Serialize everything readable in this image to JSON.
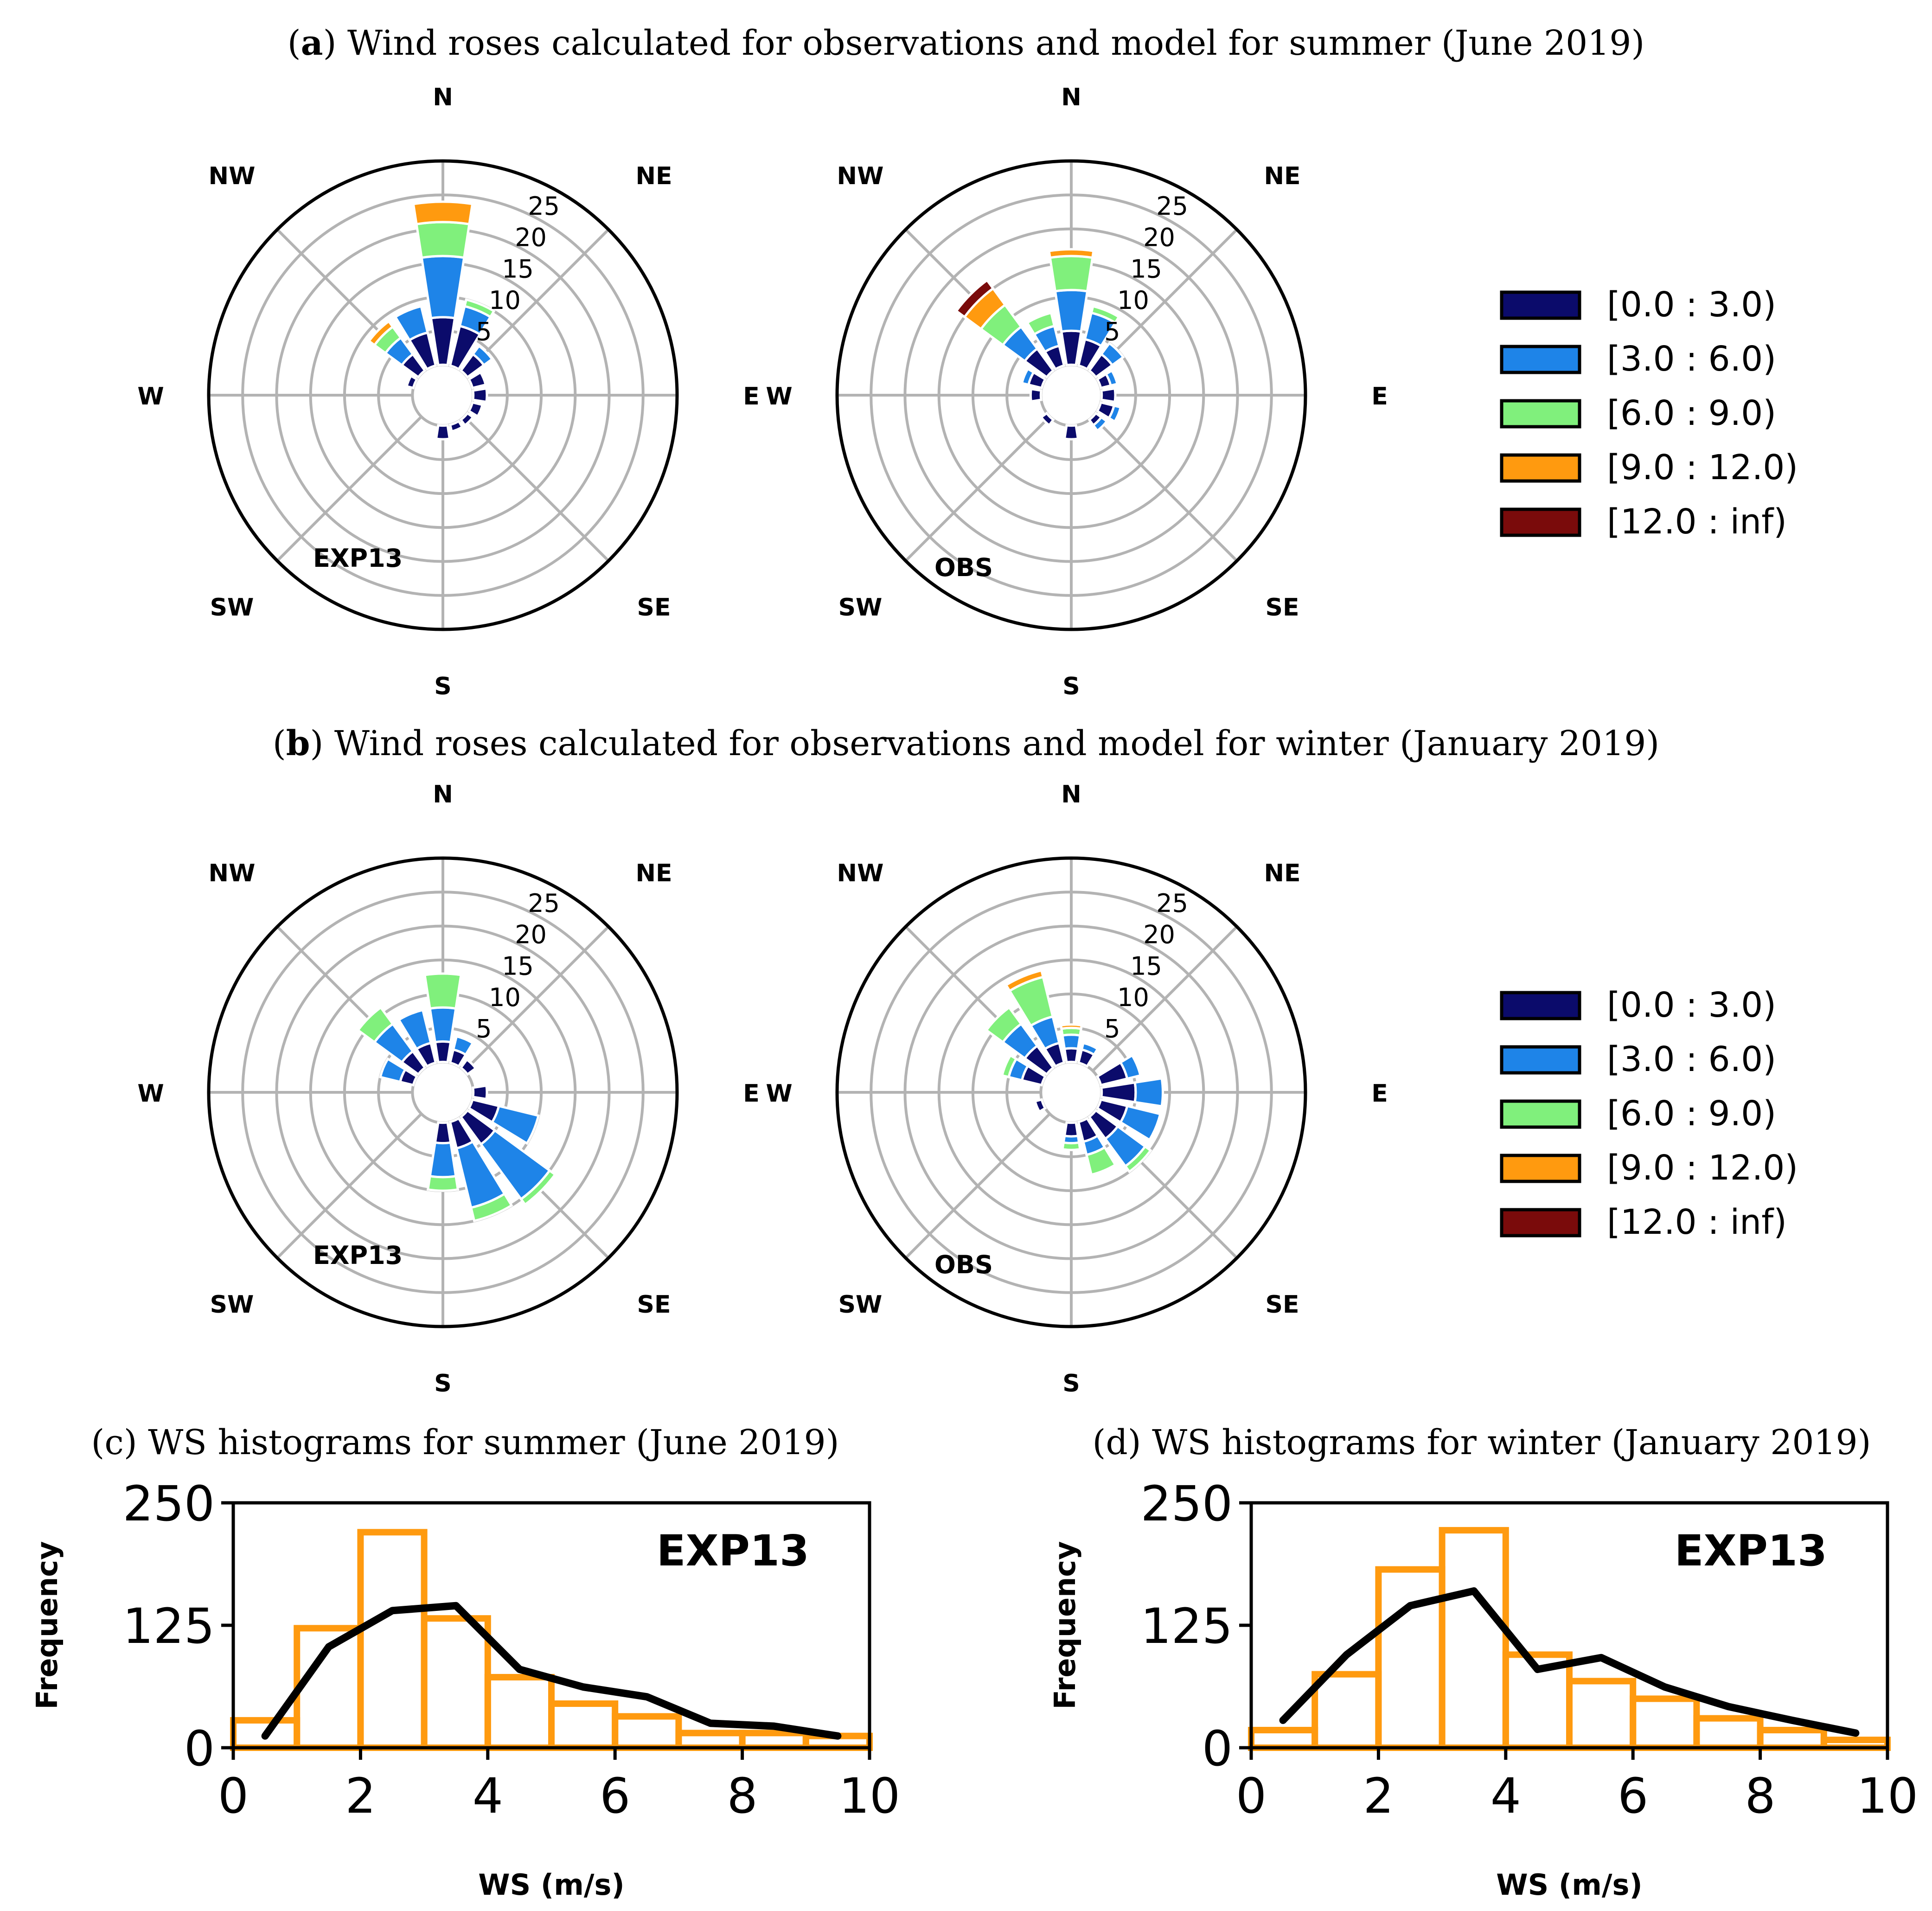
{
  "titles": {
    "a_letter": "a",
    "a_text": ") Wind roses calculated for observations and model for summer (June 2019)",
    "b_letter": "b",
    "b_text": ") Wind roses calculated for observations and model for winter (January 2019)",
    "c": "(c) WS histograms for summer (June 2019)",
    "d": "(d) WS histograms for winter (January 2019)"
  },
  "colors": {
    "bin0": "#0b0b6b",
    "bin1": "#1e84e8",
    "bin2": "#80f07c",
    "bin3": "#ff9a0f",
    "bin4": "#7a0b0b",
    "grid": "#b3b3b3",
    "hist": "#ff9a0f",
    "line": "#000000"
  },
  "directions": [
    "N",
    "NE",
    "E",
    "SE",
    "S",
    "SW",
    "W",
    "NW"
  ],
  "legend": {
    "items": [
      "[0.0 : 3.0)",
      "[3.0 : 6.0)",
      "[6.0 : 9.0)",
      "[9.0 : 12.0)",
      "[12.0 : inf)"
    ]
  },
  "chart_data": [
    {
      "type": "wind_rose",
      "title": "Wind roses calculated for observations and model for summer (June 2019)",
      "label": "EXP13",
      "radial_ticks": [
        "5",
        "10",
        "15",
        "20",
        "25"
      ],
      "rmax": 25,
      "bins": [
        "[0.0 : 3.0)",
        "[3.0 : 6.0)",
        "[6.0 : 9.0)",
        "[9.0 : 12.0)",
        "[12.0 : inf)"
      ],
      "sectors": [
        {
          "dir": 0,
          "values": [
            7,
            9,
            5,
            3,
            0
          ]
        },
        {
          "dir": 22.5,
          "values": [
            6,
            3,
            1,
            0,
            0
          ]
        },
        {
          "dir": 45,
          "values": [
            3,
            1.5,
            0,
            0,
            0
          ]
        },
        {
          "dir": 67.5,
          "values": [
            2,
            0,
            0,
            0,
            0
          ]
        },
        {
          "dir": 90,
          "values": [
            2,
            0,
            0,
            0,
            0
          ]
        },
        {
          "dir": 112.5,
          "values": [
            1.5,
            0,
            0,
            0,
            0
          ]
        },
        {
          "dir": 135,
          "values": [
            1,
            0,
            0,
            0,
            0
          ]
        },
        {
          "dir": 157.5,
          "values": [
            1,
            0,
            0,
            0,
            0
          ]
        },
        {
          "dir": 180,
          "values": [
            2,
            0,
            0,
            0,
            0
          ]
        },
        {
          "dir": 292.5,
          "values": [
            1,
            0,
            0,
            0,
            0
          ]
        },
        {
          "dir": 315,
          "values": [
            3,
            3,
            2,
            1,
            0
          ]
        },
        {
          "dir": 337.5,
          "values": [
            5,
            4,
            0,
            0,
            0
          ]
        }
      ]
    },
    {
      "type": "wind_rose",
      "title": "Wind roses calculated for observations and model for summer (June 2019)",
      "label": "OBS",
      "radial_ticks": [
        "5",
        "10",
        "15",
        "20",
        "25"
      ],
      "rmax": 25,
      "bins": [
        "[0.0 : 3.0)",
        "[3.0 : 6.0)",
        "[6.0 : 9.0)",
        "[9.0 : 12.0)",
        "[12.0 : inf)"
      ],
      "sectors": [
        {
          "dir": 0,
          "values": [
            5,
            6,
            5,
            1,
            0
          ]
        },
        {
          "dir": 22.5,
          "values": [
            4,
            4,
            1,
            0,
            0
          ]
        },
        {
          "dir": 45,
          "values": [
            3,
            2,
            0,
            0,
            0
          ]
        },
        {
          "dir": 67.5,
          "values": [
            1.5,
            1,
            0,
            0,
            0
          ]
        },
        {
          "dir": 90,
          "values": [
            2,
            0,
            0,
            0,
            0
          ]
        },
        {
          "dir": 112.5,
          "values": [
            2,
            1,
            0,
            0,
            0
          ]
        },
        {
          "dir": 135,
          "values": [
            1,
            1,
            0,
            0,
            0
          ]
        },
        {
          "dir": 180,
          "values": [
            2,
            0,
            0,
            0,
            0
          ]
        },
        {
          "dir": 225,
          "values": [
            1,
            0,
            0,
            0,
            0
          ]
        },
        {
          "dir": 270,
          "values": [
            1.5,
            0,
            0,
            0,
            0
          ]
        },
        {
          "dir": 292.5,
          "values": [
            2,
            1,
            0,
            0,
            0
          ]
        },
        {
          "dir": 315,
          "values": [
            4,
            4,
            4,
            3,
            1.5
          ]
        },
        {
          "dir": 337.5,
          "values": [
            3,
            3,
            2,
            0,
            0
          ]
        }
      ]
    },
    {
      "type": "wind_rose",
      "title": "Wind roses calculated for observations and model for winter (January 2019)",
      "label": "EXP13",
      "radial_ticks": [
        "5",
        "10",
        "15",
        "20",
        "25"
      ],
      "rmax": 25,
      "bins": [
        "[0.0 : 3.0)",
        "[3.0 : 6.0)",
        "[6.0 : 9.0)",
        "[9.0 : 12.0)",
        "[12.0 : inf)"
      ],
      "sectors": [
        {
          "dir": 0,
          "values": [
            3,
            5,
            5,
            0,
            0
          ]
        },
        {
          "dir": 22.5,
          "values": [
            2,
            2,
            0,
            0,
            0
          ]
        },
        {
          "dir": 45,
          "values": [
            1.5,
            0,
            0,
            0,
            0
          ]
        },
        {
          "dir": 90,
          "values": [
            2,
            0,
            0,
            0,
            0
          ]
        },
        {
          "dir": 112.5,
          "values": [
            4,
            6,
            0,
            0,
            0
          ]
        },
        {
          "dir": 135,
          "values": [
            5,
            10,
            1,
            0,
            0
          ]
        },
        {
          "dir": 157.5,
          "values": [
            4,
            9,
            2,
            0,
            0
          ]
        },
        {
          "dir": 180,
          "values": [
            3,
            5,
            2,
            0,
            0
          ]
        },
        {
          "dir": 292.5,
          "values": [
            2,
            3,
            0,
            0,
            0
          ]
        },
        {
          "dir": 315,
          "values": [
            3,
            5,
            3,
            0,
            0
          ]
        },
        {
          "dir": 337.5,
          "values": [
            3,
            5,
            0,
            0,
            0
          ]
        }
      ]
    },
    {
      "type": "wind_rose",
      "title": "Wind roses calculated for observations and model for winter (January 2019)",
      "label": "OBS",
      "radial_ticks": [
        "5",
        "10",
        "15",
        "20",
        "25"
      ],
      "rmax": 25,
      "bins": [
        "[0.0 : 3.0)",
        "[3.0 : 6.0)",
        "[6.0 : 9.0)",
        "[9.0 : 12.0)",
        "[12.0 : inf)"
      ],
      "sectors": [
        {
          "dir": 0,
          "values": [
            2,
            2,
            1,
            0.5,
            0
          ]
        },
        {
          "dir": 22.5,
          "values": [
            2,
            1,
            0,
            0,
            0
          ]
        },
        {
          "dir": 67.5,
          "values": [
            4,
            2,
            0,
            0,
            0
          ]
        },
        {
          "dir": 90,
          "values": [
            5,
            4,
            0,
            0,
            0
          ]
        },
        {
          "dir": 112.5,
          "values": [
            4,
            5,
            0,
            0,
            0
          ]
        },
        {
          "dir": 135,
          "values": [
            4,
            5,
            1,
            0,
            0
          ]
        },
        {
          "dir": 157.5,
          "values": [
            3,
            2,
            3,
            0,
            0
          ]
        },
        {
          "dir": 180,
          "values": [
            2,
            1,
            1,
            0,
            0
          ]
        },
        {
          "dir": 247.5,
          "values": [
            1,
            0,
            0,
            0,
            0
          ]
        },
        {
          "dir": 292.5,
          "values": [
            3,
            2,
            1,
            0,
            0
          ]
        },
        {
          "dir": 315,
          "values": [
            4,
            4,
            3,
            0,
            0
          ]
        },
        {
          "dir": 337.5,
          "values": [
            3,
            4,
            6,
            1,
            0
          ]
        }
      ]
    },
    {
      "type": "bar",
      "title": "(c) WS histograms for summer (June 2019)",
      "tag": "EXP13",
      "xlabel": "WS (m/s)",
      "ylabel": "Frequency",
      "xlim": [
        0,
        10
      ],
      "ylim": [
        0,
        250
      ],
      "xticks": [
        "0",
        "2",
        "4",
        "6",
        "8",
        "10"
      ],
      "yticks": [
        "0",
        "125",
        "250"
      ],
      "bin_edges": [
        0,
        1,
        2,
        3,
        4,
        5,
        6,
        7,
        8,
        9,
        10
      ],
      "values": [
        28,
        122,
        220,
        132,
        72,
        45,
        32,
        15,
        15,
        12
      ],
      "line": {
        "x": [
          0.5,
          1.5,
          2.5,
          3.5,
          4.5,
          5.5,
          6.5,
          7.5,
          8.5,
          9.5
        ],
        "y": [
          12,
          103,
          140,
          145,
          80,
          62,
          52,
          25,
          22,
          12
        ]
      }
    },
    {
      "type": "bar",
      "title": "(d) WS histograms for winter (January 2019)",
      "tag": "EXP13",
      "xlabel": "WS (m/s)",
      "ylabel": "Frequency",
      "xlim": [
        0,
        10
      ],
      "ylim": [
        0,
        250
      ],
      "xticks": [
        "0",
        "2",
        "4",
        "6",
        "8",
        "10"
      ],
      "yticks": [
        "0",
        "125",
        "250"
      ],
      "bin_edges": [
        0,
        1,
        2,
        3,
        4,
        5,
        6,
        7,
        8,
        9,
        10
      ],
      "values": [
        18,
        75,
        182,
        222,
        95,
        68,
        50,
        30,
        18,
        8
      ],
      "line": {
        "x": [
          0.5,
          1.5,
          2.5,
          3.5,
          4.5,
          5.5,
          6.5,
          7.5,
          8.5,
          9.5
        ],
        "y": [
          28,
          95,
          145,
          160,
          80,
          92,
          62,
          42,
          28,
          15
        ]
      }
    }
  ]
}
